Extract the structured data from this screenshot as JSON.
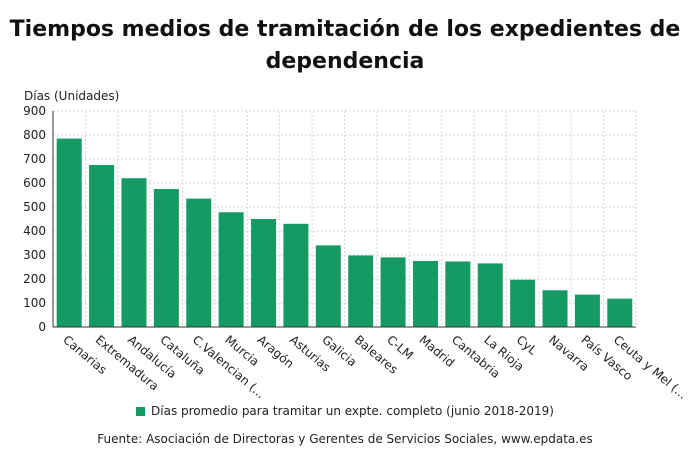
{
  "title": "Tiempos medios de tramitación de los expedientes de dependencia",
  "source": "Fuente: Asociación de Directoras y Gerentes de Servicios Sociales, www.epdata.es",
  "colors": {
    "bar": "#159a63",
    "grid": "#d6d6d6",
    "axis": "#333333"
  },
  "chart_data": {
    "type": "bar",
    "ylabel": "Días (Unidades)",
    "xlabel": "",
    "ylim": [
      0,
      900
    ],
    "yticks": [
      0,
      100,
      200,
      300,
      400,
      500,
      600,
      700,
      800,
      900
    ],
    "grid": true,
    "legend_position": "bottom",
    "categories": [
      "Canarias",
      "Extremadura",
      "Andalucía",
      "Cataluña",
      "C.Valencian (...",
      "Murcia",
      "Aragón",
      "Asturias",
      "Galicia",
      "Baleares",
      "C-LM",
      "Madrid",
      "Cantabria",
      "La Rioja",
      "CyL",
      "Navarra",
      "País Vasco",
      "Ceuta y Mel (..."
    ],
    "series": [
      {
        "name": "Días promedio para tramitar un expte. completo (junio 2018-2019)",
        "values": [
          785,
          675,
          620,
          575,
          535,
          478,
          450,
          430,
          340,
          298,
          290,
          275,
          273,
          265,
          197,
          153,
          135,
          118
        ]
      }
    ]
  }
}
